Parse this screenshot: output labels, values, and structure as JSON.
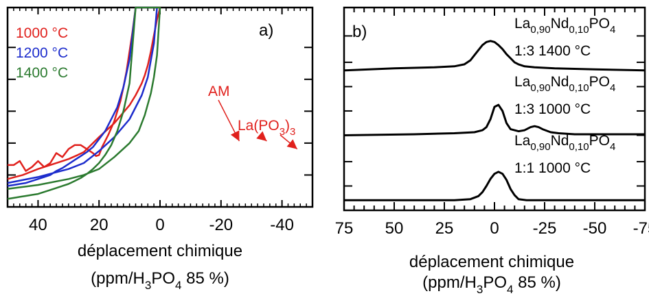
{
  "chart_data": [
    {
      "type": "line",
      "panel_label": "a)",
      "xlabel": "déplacement chimique",
      "xlabel_unit": {
        "pre": "(ppm/H",
        "sub1": "3",
        "mid": "PO",
        "sub2": "4",
        "post": " 85 %)"
      },
      "ylabel": "",
      "xlim": [
        50,
        -50
      ],
      "ylim": [
        0,
        100
      ],
      "x_reversed": true,
      "x_ticks": [
        40,
        20,
        0,
        -20,
        -40
      ],
      "legend_position": "top-left",
      "series": [
        {
          "name": "1000 °C",
          "color": "#e0201c",
          "x": [
            50,
            45,
            40,
            35,
            30,
            27,
            25,
            20,
            15,
            10,
            8,
            6,
            5,
            4,
            3,
            2,
            1,
            0,
            8,
            9,
            10,
            11,
            12,
            13,
            15,
            17,
            19,
            20,
            21,
            22,
            24,
            26,
            28,
            30,
            32,
            34,
            36,
            38,
            40,
            42,
            44,
            46,
            48,
            50
          ],
          "y": [
            14,
            16,
            19,
            21.5,
            24,
            26,
            27.5,
            35,
            42,
            51,
            56,
            62,
            66,
            71,
            78,
            86,
            94,
            100,
            100,
            88,
            78,
            68,
            60,
            53,
            43,
            36,
            30,
            26,
            25.5,
            27,
            29,
            31,
            31,
            29,
            25,
            27,
            22,
            20,
            23,
            20,
            18,
            23,
            21,
            21
          ]
        },
        {
          "name": "1200 °C",
          "color": "#1c2ccc",
          "x": [
            50,
            40,
            30,
            25,
            20,
            15,
            10,
            8,
            6,
            4,
            2,
            1,
            8,
            10,
            12,
            14,
            16,
            18,
            20,
            22,
            24,
            26,
            28,
            30,
            32,
            34,
            36,
            38,
            40,
            42,
            44,
            46,
            48,
            50
          ],
          "y": [
            12,
            15,
            19,
            22,
            28,
            35,
            44,
            50,
            56,
            65,
            82,
            100,
            100,
            74,
            60,
            50,
            44,
            38,
            34,
            30,
            27.5,
            25.5,
            23.5,
            21.5,
            19.5,
            18,
            16,
            15,
            14,
            13,
            12,
            11.5,
            11,
            10.5
          ]
        },
        {
          "name": "1400 °C",
          "color": "#2b7a2f",
          "x": [
            50,
            40,
            30,
            25,
            20,
            15,
            10,
            7,
            5,
            3,
            2,
            1,
            0,
            8,
            10,
            12,
            14,
            16,
            18,
            20,
            22,
            24,
            26,
            28,
            30,
            32,
            34,
            36,
            38,
            40,
            42,
            44,
            46,
            48,
            50
          ],
          "y": [
            9,
            11,
            14,
            16,
            19,
            25,
            32,
            38,
            46,
            57,
            65,
            76,
            100,
            100,
            62,
            48,
            38,
            31,
            26,
            22,
            19,
            16.5,
            14.5,
            13,
            11.5,
            10.5,
            9.5,
            8.5,
            7.5,
            6.5,
            6,
            5.5,
            5,
            4.5,
            4
          ]
        }
      ],
      "annotations": [
        {
          "text": "AM",
          "color": "#e0201c",
          "points_to_x": -26
        },
        {
          "text_main": "La(PO",
          "text_sub": "3",
          "text_close": ")",
          "text_sub2": "3",
          "color": "#e0201c",
          "points_to_x": [
            -35,
            -45
          ]
        }
      ]
    },
    {
      "type": "line",
      "panel_label": "b)",
      "xlabel": "déplacement chimique",
      "xlabel_unit": {
        "pre": "(ppm/H",
        "sub1": "3",
        "mid": "PO",
        "sub2": "4",
        "post": " 85 %)"
      },
      "ylabel": "",
      "xlim": [
        75,
        -75
      ],
      "ylim": [
        0,
        100
      ],
      "x_reversed": true,
      "x_ticks": [
        75,
        50,
        25,
        0,
        -25,
        -50,
        -75
      ],
      "series": [
        {
          "name": "top",
          "label_formula": {
            "a": "La",
            "a_sub": "0,90",
            "b": "Nd",
            "b_sub": "0,10",
            "c": "PO",
            "c_sub": "4"
          },
          "label_condition": "1:3 1400 °C",
          "color": "#000000",
          "x": [
            75,
            50,
            30,
            20,
            15,
            12,
            10,
            8,
            6,
            4,
            2,
            0,
            -2,
            -4,
            -6,
            -8,
            -10,
            -12,
            -15,
            -20,
            -30,
            -50,
            -75
          ],
          "y": [
            69,
            70,
            70.5,
            71,
            72,
            74,
            76.5,
            79,
            81.5,
            83,
            83.5,
            83,
            81.5,
            79.5,
            77,
            75,
            73,
            72,
            71,
            70.5,
            70,
            69.5,
            69
          ]
        },
        {
          "name": "middle",
          "label_formula": {
            "a": "La",
            "a_sub": "0,90",
            "b": "Nd",
            "b_sub": "0,10",
            "c": "PO",
            "c_sub": "4"
          },
          "label_condition": "1:3 1000 °C",
          "color": "#000000",
          "x": [
            75,
            40,
            20,
            10,
            6,
            4,
            2,
            0,
            -2,
            -4,
            -6,
            -8,
            -10,
            -12,
            -15,
            -18,
            -20,
            -22,
            -24,
            -28,
            -32,
            -40,
            -60,
            -75
          ],
          "y": [
            37,
            37.5,
            38,
            38.5,
            39.5,
            41,
            45,
            51,
            52,
            49,
            43,
            40,
            39.5,
            39,
            39.5,
            41,
            41.5,
            41,
            40,
            38.5,
            38,
            37.5,
            37.5,
            37.5
          ]
        },
        {
          "name": "bottom",
          "label_formula": {
            "a": "La",
            "a_sub": "0,90",
            "b": "Nd",
            "b_sub": "0,10",
            "c": "PO",
            "c_sub": "4"
          },
          "label_condition": "1:1 1000 °C",
          "color": "#000000",
          "x": [
            75,
            40,
            20,
            12,
            8,
            6,
            4,
            2,
            0,
            -2,
            -4,
            -6,
            -8,
            -10,
            -12,
            -16,
            -20,
            -40,
            -75
          ],
          "y": [
            5,
            5,
            5,
            5.5,
            7,
            9,
            12,
            15.5,
            18,
            19,
            18,
            15,
            10.5,
            7.5,
            5.5,
            5,
            5,
            5,
            5
          ]
        }
      ]
    }
  ]
}
